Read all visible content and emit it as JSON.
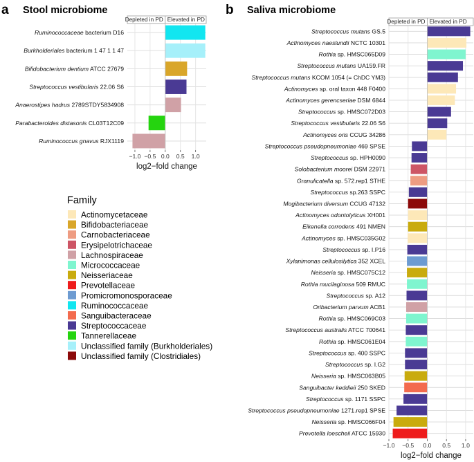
{
  "panels": {
    "a": {
      "letter": "a",
      "title": "Stool microbiome"
    },
    "b": {
      "letter": "b",
      "title": "Saliva microbiome"
    }
  },
  "headers": {
    "depleted": "Depleted in PD",
    "elevated": "Elevated in PD"
  },
  "legend": {
    "title": "Family",
    "items": [
      {
        "name": "Actinomycetaceae",
        "color": "#FDE8B8"
      },
      {
        "name": "Bifidobacteriaceae",
        "color": "#D9A62A"
      },
      {
        "name": "Carnobacteriaceae",
        "color": "#EE9C82"
      },
      {
        "name": "Erysipelotrichaceae",
        "color": "#CD5565"
      },
      {
        "name": "Lachnospiraceae",
        "color": "#D0A1A6"
      },
      {
        "name": "Micrococcaceae",
        "color": "#7FF5CF"
      },
      {
        "name": "Neisseriaceae",
        "color": "#C9AB0E"
      },
      {
        "name": "Prevotellaceae",
        "color": "#EE1C1C"
      },
      {
        "name": "Promicromonosporaceae",
        "color": "#6D9BD1"
      },
      {
        "name": "Ruminococcaceae",
        "color": "#12E6F0"
      },
      {
        "name": "Sanguibacteraceae",
        "color": "#F36B4E"
      },
      {
        "name": "Streptococcaceae",
        "color": "#4A3A94"
      },
      {
        "name": "Tannerellaceae",
        "color": "#25D40F"
      },
      {
        "name": "Unclassified family (Burkholderiales)",
        "color": "#A6F0FA"
      },
      {
        "name": "Unclassified family (Clostridiales)",
        "color": "#8C0A0A"
      }
    ]
  },
  "chart_data": [
    {
      "type": "bar",
      "orientation": "horizontal",
      "panel": "a",
      "title": "Stool microbiome",
      "xlabel": "log2−fold change",
      "xlim": [
        -1.25,
        1.35
      ],
      "xticks": [
        -1.0,
        -0.5,
        0.0,
        0.5,
        1.0
      ],
      "xtick_labels": [
        "−1.0",
        "−0.5",
        "0.0",
        "0.5",
        "1.0"
      ],
      "bars": [
        {
          "genus": "Ruminococcaceae",
          "rest": " bacterium D16",
          "value": 1.32,
          "family": "Ruminococcaceae"
        },
        {
          "genus": "Burkholderiales",
          "rest": " bacterium 1 47 1 1 47",
          "value": 1.32,
          "family": "Unclassified family (Burkholderiales)"
        },
        {
          "genus": "Bifidobacterium dentium",
          "rest": " ATCC 27679",
          "value": 0.72,
          "family": "Bifidobacteriaceae"
        },
        {
          "genus": "Streptococcus vestibularis",
          "rest": " 22.06 S6",
          "value": 0.7,
          "family": "Streptococcaceae"
        },
        {
          "genus": "Anaerostipes hadrus",
          "rest": " 2789STDY5834908",
          "value": 0.52,
          "family": "Lachnospiraceae"
        },
        {
          "genus": "Parabacteroides distasonis",
          "rest": " CL03T12C09",
          "value": -0.55,
          "family": "Tannerellaceae"
        },
        {
          "genus": "Ruminococcus gnavus",
          "rest": " RJX1119",
          "value": -1.08,
          "family": "Lachnospiraceae"
        }
      ]
    },
    {
      "type": "bar",
      "orientation": "horizontal",
      "panel": "b",
      "title": "Saliva microbiome",
      "xlabel": "log2−fold change",
      "xlim": [
        -1.0,
        1.2
      ],
      "xticks": [
        -1.0,
        -0.5,
        0.0,
        0.5,
        1.0
      ],
      "xtick_labels": [
        "−1.0",
        "−0.5",
        "0.0",
        "0.5",
        "1.0"
      ],
      "bars": [
        {
          "genus": "Streptococcus mutans",
          "rest": " GS.5",
          "value": 1.12,
          "family": "Streptococcaceae"
        },
        {
          "genus": "Actinomyces naeslundii",
          "rest": " NCTC 10301",
          "value": 1.02,
          "family": "Actinomycetaceae"
        },
        {
          "genus": "Rothia",
          "rest": " sp. HMSC065D09",
          "value": 1.0,
          "family": "Micrococcaceae"
        },
        {
          "genus": "Streptococcus mutans",
          "rest": " UA159.FR",
          "value": 0.93,
          "family": "Streptococcaceae"
        },
        {
          "genus": "Streptococcus mutans",
          "rest": " KCOM 1054 (= ChDC YM3)",
          "value": 0.8,
          "family": "Streptococcaceae"
        },
        {
          "genus": "Actinomyces",
          "rest": " sp. oral taxon 448 F0400",
          "value": 0.75,
          "family": "Actinomycetaceae"
        },
        {
          "genus": "Actinomyces gerencseriae",
          "rest": " DSM 6844",
          "value": 0.72,
          "family": "Actinomycetaceae"
        },
        {
          "genus": "Streptococcus",
          "rest": " sp. HMSC072D03",
          "value": 0.62,
          "family": "Streptococcaceae"
        },
        {
          "genus": "Streptococcus vestibularis",
          "rest": " 22.06 S6",
          "value": 0.52,
          "family": "Streptococcaceae"
        },
        {
          "genus": "Actinomyces oris",
          "rest": " CCUG 34286",
          "value": 0.5,
          "family": "Actinomycetaceae"
        },
        {
          "genus": "Streptococcus pseudopneumoniae",
          "rest": " 469 SPSE",
          "value": -0.4,
          "family": "Streptococcaceae"
        },
        {
          "genus": "Streptococcus",
          "rest": " sp. HPH0090",
          "value": -0.41,
          "family": "Streptococcaceae"
        },
        {
          "genus": "Solobacterium moorei",
          "rest": " DSM 22971",
          "value": -0.43,
          "family": "Erysipelotrichaceae"
        },
        {
          "genus": "Granulicatella",
          "rest": " sp. 572.rep1 STHE",
          "value": -0.44,
          "family": "Carnobacteriaceae"
        },
        {
          "genus": "Streptococcus",
          "rest": " sp.263 SSPC",
          "value": -0.48,
          "family": "Streptococcaceae"
        },
        {
          "genus": "Mogibacterium diversum",
          "rest": " CCUG 47132",
          "value": -0.5,
          "family": "Unclassified family (Clostridiales)"
        },
        {
          "genus": "Actinomyces odontolyticus",
          "rest": " XH001",
          "value": -0.5,
          "family": "Actinomycetaceae"
        },
        {
          "genus": "Eikenella corrodens",
          "rest": " 491 NMEN",
          "value": -0.5,
          "family": "Neisseriaceae"
        },
        {
          "genus": "Actinomyces",
          "rest": " sp. HMSC035G02",
          "value": -0.51,
          "family": "Actinomycetaceae"
        },
        {
          "genus": "Streptococcus",
          "rest": " sp. I.P16",
          "value": -0.52,
          "family": "Streptococcaceae"
        },
        {
          "genus": "Xylanimonas cellulosilytica",
          "rest": " 352 XCEL",
          "value": -0.53,
          "family": "Promicromonosporaceae"
        },
        {
          "genus": "Neisseria",
          "rest": " sp. HMSC075C12",
          "value": -0.53,
          "family": "Neisseriaceae"
        },
        {
          "genus": "Rothia mucilaginosa",
          "rest": " 509 RMUC",
          "value": -0.53,
          "family": "Micrococcaceae"
        },
        {
          "genus": "Streptococcus",
          "rest": " sp. A12",
          "value": -0.54,
          "family": "Streptococcaceae"
        },
        {
          "genus": "Oribacterium parvum",
          "rest": " ACB1",
          "value": -0.55,
          "family": "Lachnospiraceae"
        },
        {
          "genus": "Rothia",
          "rest": " sp. HMSC069C03",
          "value": -0.55,
          "family": "Micrococcaceae"
        },
        {
          "genus": "Streptococcus australis",
          "rest": " ATCC 700641",
          "value": -0.56,
          "family": "Streptococcaceae"
        },
        {
          "genus": "Rothia",
          "rest": " sp. HMSC061E04",
          "value": -0.56,
          "family": "Micrococcaceae"
        },
        {
          "genus": "Streptococcus",
          "rest": " sp. 400 SSPC",
          "value": -0.58,
          "family": "Streptococcaceae"
        },
        {
          "genus": "Streptococcus",
          "rest": " sp. I.G2",
          "value": -0.58,
          "family": "Streptococcaceae"
        },
        {
          "genus": "Neisseria",
          "rest": " sp. HMSC063B05",
          "value": -0.59,
          "family": "Neisseriaceae"
        },
        {
          "genus": "Sanguibacter keddieii",
          "rest": " 250 SKED",
          "value": -0.6,
          "family": "Sanguibacteraceae"
        },
        {
          "genus": "Streptococcus",
          "rest": " sp. 1171 SSPC",
          "value": -0.62,
          "family": "Streptococcaceae"
        },
        {
          "genus": "Streptococcus pseudopneumoniae",
          "rest": " 1271.rep1 SPSE",
          "value": -0.8,
          "family": "Streptococcaceae"
        },
        {
          "genus": "Neisseria",
          "rest": " sp. HMSC066F04",
          "value": -0.88,
          "family": "Neisseriaceae"
        },
        {
          "genus": "Prevotella loescheii",
          "rest": " ATCC 15930",
          "value": -0.9,
          "family": "Prevotellaceae"
        }
      ]
    }
  ]
}
